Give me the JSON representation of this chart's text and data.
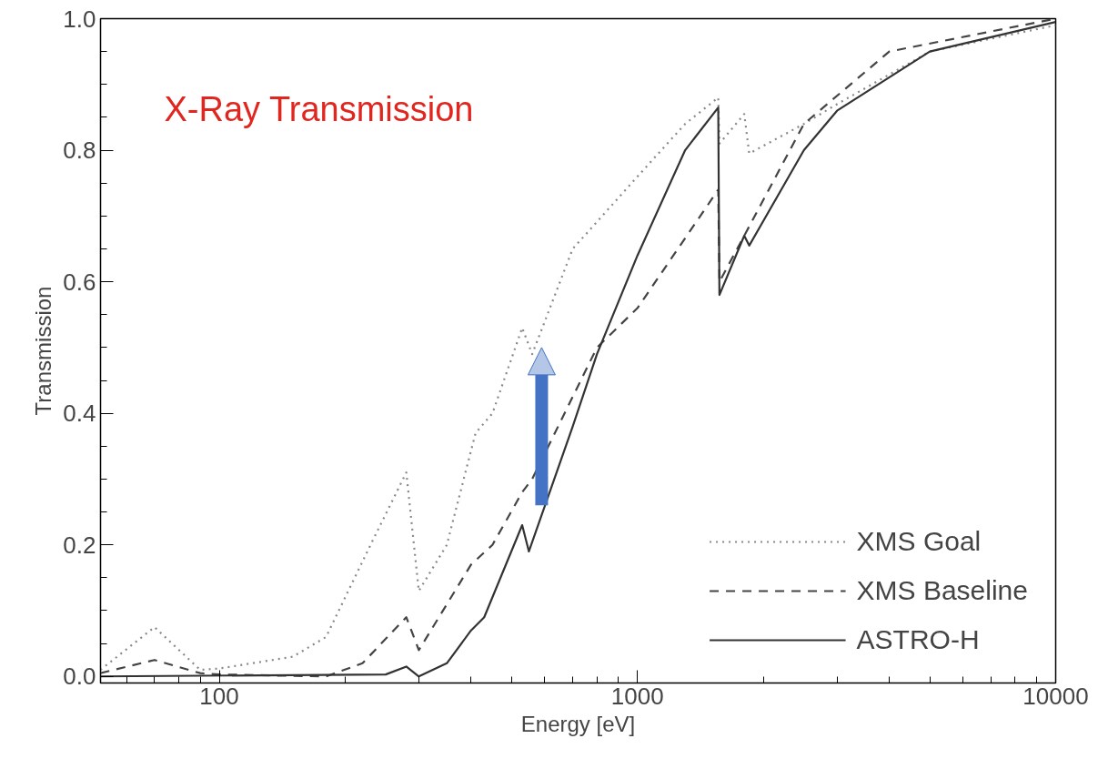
{
  "chart_data": {
    "type": "line",
    "xlabel": "Energy [eV]",
    "ylabel": "Transmission",
    "annotations": [
      "X-Ray Transmission"
    ],
    "log": "x",
    "xlim": [
      52,
      10000
    ],
    "xticks": [
      100,
      1000,
      10000
    ],
    "ylim": [
      -0.01,
      1.0
    ],
    "yticks": [
      {
        "value": 0,
        "label": "0.0"
      },
      {
        "value": 0.2,
        "label": "0.2"
      },
      {
        "value": 0.4,
        "label": "0.4"
      },
      {
        "value": 0.6,
        "label": "0.6"
      },
      {
        "value": 0.8,
        "label": "0.8"
      },
      {
        "value": 1.0,
        "label": "1.0"
      }
    ],
    "grid": false,
    "legend": "bottom right",
    "series": [
      {
        "name": "XMS Goal",
        "color": "#888888",
        "line_style": "dotted",
        "x": [
          52,
          70,
          90,
          100,
          150,
          180,
          230,
          280,
          300,
          350,
          410,
          450,
          530,
          560,
          700,
          1000,
          1300,
          1560,
          1570,
          1800,
          1850,
          2500,
          3000,
          5000,
          10000
        ],
        "values": [
          0.01,
          0.075,
          0.01,
          0.012,
          0.03,
          0.06,
          0.2,
          0.31,
          0.13,
          0.2,
          0.37,
          0.4,
          0.53,
          0.49,
          0.65,
          0.76,
          0.84,
          0.88,
          0.81,
          0.855,
          0.795,
          0.84,
          0.87,
          0.95,
          0.99
        ]
      },
      {
        "name": "XMS Baseline",
        "color": "#444444",
        "line_style": "dashed",
        "x": [
          52,
          70,
          90,
          100,
          180,
          220,
          280,
          300,
          400,
          450,
          530,
          560,
          800,
          1000,
          1560,
          1570,
          1800,
          2500,
          4000,
          10000
        ],
        "values": [
          0.005,
          0.025,
          0.005,
          0.003,
          0.0,
          0.02,
          0.09,
          0.04,
          0.17,
          0.2,
          0.28,
          0.3,
          0.5,
          0.56,
          0.74,
          0.6,
          0.67,
          0.84,
          0.95,
          1.0
        ]
      },
      {
        "name": "ASTRO-H",
        "color": "#333333",
        "line_style": "solid",
        "x": [
          52,
          250,
          280,
          300,
          350,
          400,
          430,
          530,
          550,
          700,
          800,
          1000,
          1300,
          1560,
          1570,
          1800,
          1850,
          2500,
          3000,
          5000,
          10000
        ],
        "values": [
          0.0,
          0.003,
          0.015,
          0.0,
          0.02,
          0.07,
          0.09,
          0.23,
          0.19,
          0.38,
          0.49,
          0.64,
          0.8,
          0.865,
          0.58,
          0.67,
          0.655,
          0.8,
          0.86,
          0.95,
          0.995
        ]
      }
    ]
  }
}
